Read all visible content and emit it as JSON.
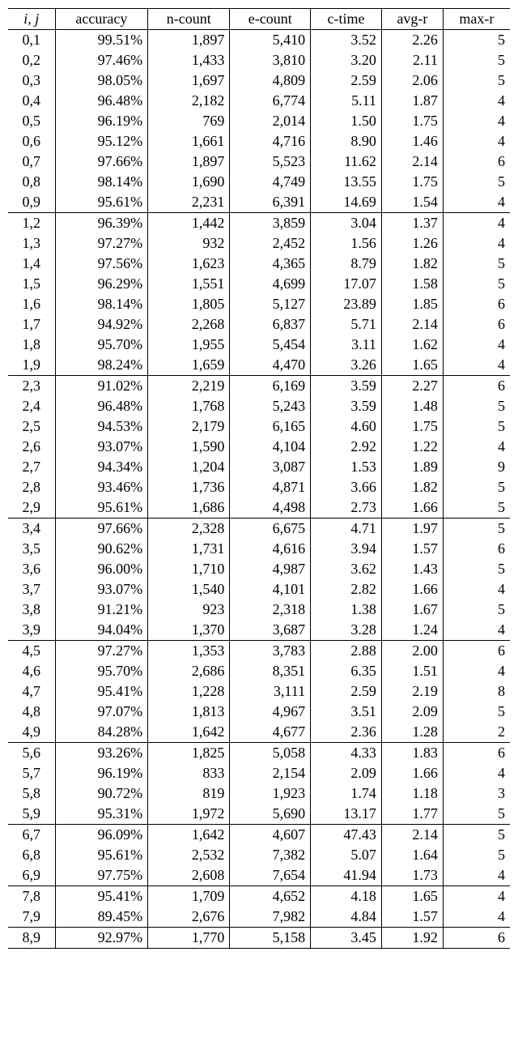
{
  "table": {
    "columns": [
      "i, j",
      "accuracy",
      "n-count",
      "e-count",
      "c-time",
      "avg-r",
      "max-r"
    ],
    "column_align": [
      "center",
      "right",
      "right",
      "right",
      "right",
      "right",
      "right"
    ],
    "border_color": "#000000",
    "font_family": "Times New Roman",
    "font_size_pt": 14,
    "background_color": "#ffffff",
    "group_breaks_after_ij": [
      "0,9",
      "1,9",
      "2,9",
      "3,9",
      "4,9",
      "5,9",
      "6,9",
      "7,9"
    ],
    "rows": [
      {
        "ij": "0,1",
        "accuracy": "99.51%",
        "n": "1,897",
        "e": "5,410",
        "c": "3.52",
        "avg": "2.26",
        "max": "5"
      },
      {
        "ij": "0,2",
        "accuracy": "97.46%",
        "n": "1,433",
        "e": "3,810",
        "c": "3.20",
        "avg": "2.11",
        "max": "5"
      },
      {
        "ij": "0,3",
        "accuracy": "98.05%",
        "n": "1,697",
        "e": "4,809",
        "c": "2.59",
        "avg": "2.06",
        "max": "5"
      },
      {
        "ij": "0,4",
        "accuracy": "96.48%",
        "n": "2,182",
        "e": "6,774",
        "c": "5.11",
        "avg": "1.87",
        "max": "4"
      },
      {
        "ij": "0,5",
        "accuracy": "96.19%",
        "n": "769",
        "e": "2,014",
        "c": "1.50",
        "avg": "1.75",
        "max": "4"
      },
      {
        "ij": "0,6",
        "accuracy": "95.12%",
        "n": "1,661",
        "e": "4,716",
        "c": "8.90",
        "avg": "1.46",
        "max": "4"
      },
      {
        "ij": "0,7",
        "accuracy": "97.66%",
        "n": "1,897",
        "e": "5,523",
        "c": "11.62",
        "avg": "2.14",
        "max": "6"
      },
      {
        "ij": "0,8",
        "accuracy": "98.14%",
        "n": "1,690",
        "e": "4,749",
        "c": "13.55",
        "avg": "1.75",
        "max": "5"
      },
      {
        "ij": "0,9",
        "accuracy": "95.61%",
        "n": "2,231",
        "e": "6,391",
        "c": "14.69",
        "avg": "1.54",
        "max": "4"
      },
      {
        "ij": "1,2",
        "accuracy": "96.39%",
        "n": "1,442",
        "e": "3,859",
        "c": "3.04",
        "avg": "1.37",
        "max": "4"
      },
      {
        "ij": "1,3",
        "accuracy": "97.27%",
        "n": "932",
        "e": "2,452",
        "c": "1.56",
        "avg": "1.26",
        "max": "4"
      },
      {
        "ij": "1,4",
        "accuracy": "97.56%",
        "n": "1,623",
        "e": "4,365",
        "c": "8.79",
        "avg": "1.82",
        "max": "5"
      },
      {
        "ij": "1,5",
        "accuracy": "96.29%",
        "n": "1,551",
        "e": "4,699",
        "c": "17.07",
        "avg": "1.58",
        "max": "5"
      },
      {
        "ij": "1,6",
        "accuracy": "98.14%",
        "n": "1,805",
        "e": "5,127",
        "c": "23.89",
        "avg": "1.85",
        "max": "6"
      },
      {
        "ij": "1,7",
        "accuracy": "94.92%",
        "n": "2,268",
        "e": "6,837",
        "c": "5.71",
        "avg": "2.14",
        "max": "6"
      },
      {
        "ij": "1,8",
        "accuracy": "95.70%",
        "n": "1,955",
        "e": "5,454",
        "c": "3.11",
        "avg": "1.62",
        "max": "4"
      },
      {
        "ij": "1,9",
        "accuracy": "98.24%",
        "n": "1,659",
        "e": "4,470",
        "c": "3.26",
        "avg": "1.65",
        "max": "4"
      },
      {
        "ij": "2,3",
        "accuracy": "91.02%",
        "n": "2,219",
        "e": "6,169",
        "c": "3.59",
        "avg": "2.27",
        "max": "6"
      },
      {
        "ij": "2,4",
        "accuracy": "96.48%",
        "n": "1,768",
        "e": "5,243",
        "c": "3.59",
        "avg": "1.48",
        "max": "5"
      },
      {
        "ij": "2,5",
        "accuracy": "94.53%",
        "n": "2,179",
        "e": "6,165",
        "c": "4.60",
        "avg": "1.75",
        "max": "5"
      },
      {
        "ij": "2,6",
        "accuracy": "93.07%",
        "n": "1,590",
        "e": "4,104",
        "c": "2.92",
        "avg": "1.22",
        "max": "4"
      },
      {
        "ij": "2,7",
        "accuracy": "94.34%",
        "n": "1,204",
        "e": "3,087",
        "c": "1.53",
        "avg": "1.89",
        "max": "9"
      },
      {
        "ij": "2,8",
        "accuracy": "93.46%",
        "n": "1,736",
        "e": "4,871",
        "c": "3.66",
        "avg": "1.82",
        "max": "5"
      },
      {
        "ij": "2,9",
        "accuracy": "95.61%",
        "n": "1,686",
        "e": "4,498",
        "c": "2.73",
        "avg": "1.66",
        "max": "5"
      },
      {
        "ij": "3,4",
        "accuracy": "97.66%",
        "n": "2,328",
        "e": "6,675",
        "c": "4.71",
        "avg": "1.97",
        "max": "5"
      },
      {
        "ij": "3,5",
        "accuracy": "90.62%",
        "n": "1,731",
        "e": "4,616",
        "c": "3.94",
        "avg": "1.57",
        "max": "6"
      },
      {
        "ij": "3,6",
        "accuracy": "96.00%",
        "n": "1,710",
        "e": "4,987",
        "c": "3.62",
        "avg": "1.43",
        "max": "5"
      },
      {
        "ij": "3,7",
        "accuracy": "93.07%",
        "n": "1,540",
        "e": "4,101",
        "c": "2.82",
        "avg": "1.66",
        "max": "4"
      },
      {
        "ij": "3,8",
        "accuracy": "91.21%",
        "n": "923",
        "e": "2,318",
        "c": "1.38",
        "avg": "1.67",
        "max": "5"
      },
      {
        "ij": "3,9",
        "accuracy": "94.04%",
        "n": "1,370",
        "e": "3,687",
        "c": "3.28",
        "avg": "1.24",
        "max": "4"
      },
      {
        "ij": "4,5",
        "accuracy": "97.27%",
        "n": "1,353",
        "e": "3,783",
        "c": "2.88",
        "avg": "2.00",
        "max": "6"
      },
      {
        "ij": "4,6",
        "accuracy": "95.70%",
        "n": "2,686",
        "e": "8,351",
        "c": "6.35",
        "avg": "1.51",
        "max": "4"
      },
      {
        "ij": "4,7",
        "accuracy": "95.41%",
        "n": "1,228",
        "e": "3,111",
        "c": "2.59",
        "avg": "2.19",
        "max": "8"
      },
      {
        "ij": "4,8",
        "accuracy": "97.07%",
        "n": "1,813",
        "e": "4,967",
        "c": "3.51",
        "avg": "2.09",
        "max": "5"
      },
      {
        "ij": "4,9",
        "accuracy": "84.28%",
        "n": "1,642",
        "e": "4,677",
        "c": "2.36",
        "avg": "1.28",
        "max": "2"
      },
      {
        "ij": "5,6",
        "accuracy": "93.26%",
        "n": "1,825",
        "e": "5,058",
        "c": "4.33",
        "avg": "1.83",
        "max": "6"
      },
      {
        "ij": "5,7",
        "accuracy": "96.19%",
        "n": "833",
        "e": "2,154",
        "c": "2.09",
        "avg": "1.66",
        "max": "4"
      },
      {
        "ij": "5,8",
        "accuracy": "90.72%",
        "n": "819",
        "e": "1,923",
        "c": "1.74",
        "avg": "1.18",
        "max": "3"
      },
      {
        "ij": "5,9",
        "accuracy": "95.31%",
        "n": "1,972",
        "e": "5,690",
        "c": "13.17",
        "avg": "1.77",
        "max": "5"
      },
      {
        "ij": "6,7",
        "accuracy": "96.09%",
        "n": "1,642",
        "e": "4,607",
        "c": "47.43",
        "avg": "2.14",
        "max": "5"
      },
      {
        "ij": "6,8",
        "accuracy": "95.61%",
        "n": "2,532",
        "e": "7,382",
        "c": "5.07",
        "avg": "1.64",
        "max": "5"
      },
      {
        "ij": "6,9",
        "accuracy": "97.75%",
        "n": "2,608",
        "e": "7,654",
        "c": "41.94",
        "avg": "1.73",
        "max": "4"
      },
      {
        "ij": "7,8",
        "accuracy": "95.41%",
        "n": "1,709",
        "e": "4,652",
        "c": "4.18",
        "avg": "1.65",
        "max": "4"
      },
      {
        "ij": "7,9",
        "accuracy": "89.45%",
        "n": "2,676",
        "e": "7,982",
        "c": "4.84",
        "avg": "1.57",
        "max": "4"
      },
      {
        "ij": "8,9",
        "accuracy": "92.97%",
        "n": "1,770",
        "e": "5,158",
        "c": "3.45",
        "avg": "1.92",
        "max": "6"
      }
    ]
  }
}
